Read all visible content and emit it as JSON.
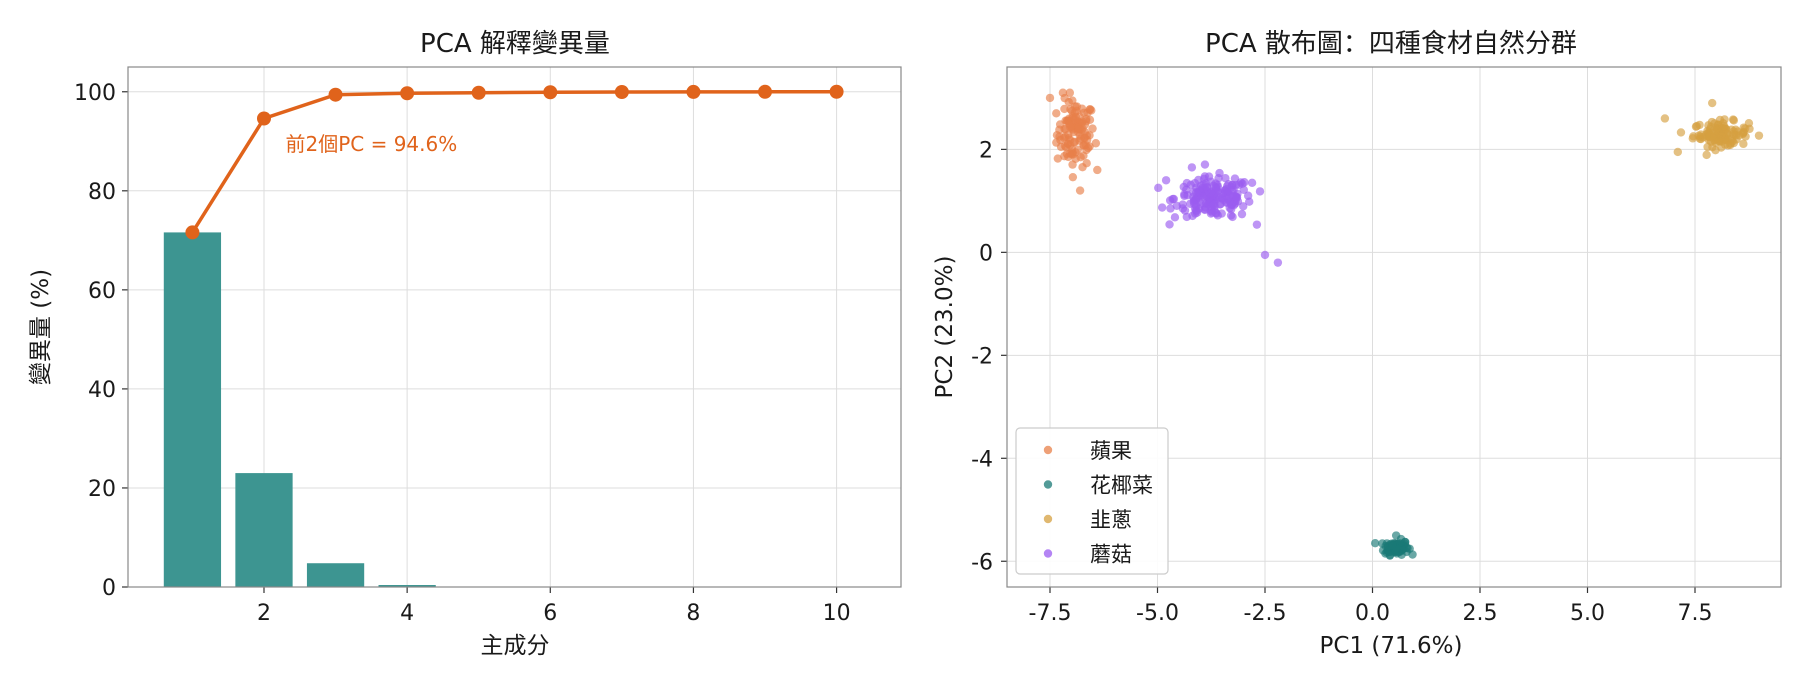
{
  "colors": {
    "bar": "#3d9591",
    "cumulative": "#e0631b",
    "apple": "#e8804a",
    "cauliflower": "#1a7a76",
    "chives": "#d5a040",
    "mushroom": "#9b5cf0",
    "grid": "#dddddd"
  },
  "chart_data": [
    {
      "type": "bar",
      "title": "PCA 解釋變異量",
      "xlabel": "主成分",
      "ylabel": "變異量 (%)",
      "x": [
        1,
        2,
        3,
        4,
        5,
        6,
        7,
        8,
        9,
        10
      ],
      "values": [
        71.6,
        23.0,
        4.8,
        0.4,
        0.1,
        0.05,
        0.03,
        0.02,
        0.01,
        0.01
      ],
      "xlim": [
        0.1,
        10.9
      ],
      "ylim": [
        0,
        105
      ],
      "xticks": [
        2,
        4,
        6,
        8,
        10
      ],
      "yticks": [
        0,
        20,
        40,
        60,
        80,
        100
      ],
      "grid": true,
      "overlay_line": {
        "values": [
          71.6,
          94.6,
          99.4,
          99.7,
          99.8,
          99.9,
          99.95,
          99.97,
          99.99,
          100.0
        ]
      },
      "annotation": "前2個PC = 94.6%"
    },
    {
      "type": "scatter",
      "title": "PCA 散布圖：四種食材自然分群",
      "xlabel": "PC1 (71.6%)",
      "ylabel": "PC2 (23.0%)",
      "xlim": [
        -8.5,
        9.5
      ],
      "ylim": [
        -6.5,
        3.6
      ],
      "xticks": [
        -7.5,
        -5.0,
        -2.5,
        0.0,
        2.5,
        5.0,
        7.5
      ],
      "xtick_labels": [
        "-7.5",
        "-5.0",
        "-2.5",
        "0.0",
        "2.5",
        "5.0",
        "7.5"
      ],
      "yticks": [
        -6,
        -4,
        -2,
        0,
        2
      ],
      "ytick_labels": [
        "-6",
        "-4",
        "-2",
        "0",
        "2"
      ],
      "grid": true,
      "legend_position": "lower-left",
      "series": [
        {
          "name": "蘋果",
          "color_key": "apple",
          "center": [
            -6.9,
            2.3
          ],
          "spread": [
            0.22,
            0.32
          ],
          "n": 110,
          "extra": [
            [
              -7.5,
              3.0
            ],
            [
              -6.8,
              1.2
            ],
            [
              -7.2,
              3.1
            ],
            [
              -6.4,
              1.6
            ]
          ]
        },
        {
          "name": "花椰菜",
          "color_key": "cauliflower",
          "center": [
            0.55,
            -5.73
          ],
          "spread": [
            0.14,
            0.07
          ],
          "n": 90,
          "extra": [
            [
              0.55,
              -5.5
            ],
            [
              0.3,
              -5.85
            ]
          ]
        },
        {
          "name": "韭蔥",
          "color_key": "chives",
          "center": [
            8.1,
            2.3
          ],
          "spread": [
            0.32,
            0.12
          ],
          "n": 110,
          "extra": [
            [
              6.8,
              2.6
            ],
            [
              7.1,
              1.95
            ],
            [
              7.9,
              2.9
            ]
          ]
        },
        {
          "name": "蘑菇",
          "color_key": "mushroom",
          "center": [
            -3.7,
            1.05
          ],
          "spread": [
            0.45,
            0.2
          ],
          "n": 180,
          "extra": [
            [
              -2.2,
              -0.2
            ],
            [
              -2.5,
              -0.05
            ],
            [
              -4.8,
              1.4
            ],
            [
              -2.8,
              1.35
            ],
            [
              -4.2,
              1.65
            ]
          ]
        }
      ]
    }
  ]
}
